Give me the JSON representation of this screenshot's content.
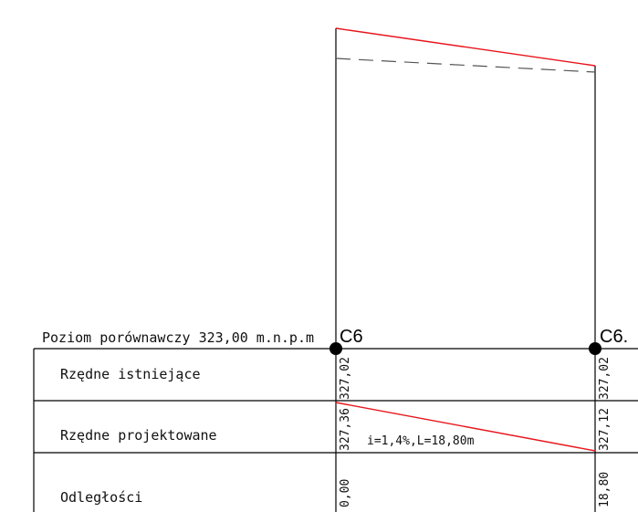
{
  "datum": {
    "label": "Poziom porównawczy 323,00 m.n.p.m"
  },
  "nodes": [
    {
      "id": "C6",
      "label": "C6"
    },
    {
      "id": "C6a",
      "label": "C6."
    }
  ],
  "rows": {
    "existing_label": "Rzędne istniejące",
    "design_label": "Rzędne projektowane",
    "distance_label": "Odległości"
  },
  "values": {
    "existing_start": "327,02",
    "existing_end": "327,02",
    "design_start": "327,36",
    "design_end": "327,12",
    "distance_start": "0,00",
    "distance_end": "18,80"
  },
  "segment": {
    "slope_label": "i=1,4%,L=18,80m"
  },
  "colors": {
    "design_line": "#e8141b",
    "existing_line": "#555555",
    "frame": "#000000"
  }
}
